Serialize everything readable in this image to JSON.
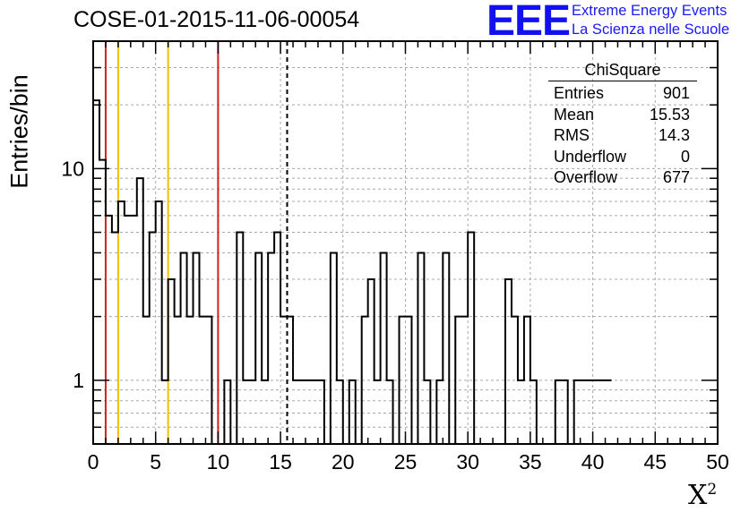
{
  "chart_data": {
    "type": "bar",
    "title": "COSE-01-2015-11-06-00054",
    "xlabel": "X²",
    "ylabel": "Entries/bin",
    "xlim": [
      0,
      50
    ],
    "ylim": [
      0.5,
      40
    ],
    "yscale": "log",
    "grid": true,
    "bin_width": 0.5,
    "x_ticks": [
      "0",
      "5",
      "10",
      "15",
      "20",
      "25",
      "30",
      "35",
      "40",
      "45",
      "50"
    ],
    "y_ticks": [
      "1",
      "10"
    ],
    "values": [
      21,
      11,
      6,
      5,
      7,
      6,
      6,
      9,
      2,
      5,
      7,
      1,
      3,
      2,
      4,
      2,
      4,
      2,
      2,
      0,
      0,
      1,
      0,
      5,
      1,
      1,
      4,
      1,
      4,
      5,
      2,
      2,
      1,
      1,
      1,
      1,
      1,
      0,
      4,
      1,
      0,
      1,
      0,
      2,
      3,
      1,
      4,
      1,
      0,
      2,
      2,
      0,
      4,
      1,
      0,
      1,
      4,
      0,
      2,
      2,
      5,
      0,
      0,
      0,
      0,
      0,
      3,
      2,
      1,
      2,
      1,
      0,
      0,
      0,
      1,
      1,
      0,
      1,
      1,
      1,
      1,
      1,
      1
    ],
    "reference_lines": [
      {
        "x": 1,
        "color": "#d32020"
      },
      {
        "x": 2,
        "color": "#f0c000"
      },
      {
        "x": 6,
        "color": "#f0c000"
      },
      {
        "x": 10,
        "color": "#d32020"
      },
      {
        "x": 15.53,
        "color": "#000000",
        "style": "dashed"
      }
    ]
  },
  "stats": {
    "title": "ChiSquare",
    "rows": [
      {
        "label": "Entries",
        "value": "901"
      },
      {
        "label": "Mean",
        "value": "15.53"
      },
      {
        "label": "RMS",
        "value": "14.3"
      },
      {
        "label": "Underflow",
        "value": "0"
      },
      {
        "label": "Overflow",
        "value": "677"
      }
    ]
  },
  "logo": {
    "mark": "EEE",
    "line1": "Extreme Energy Events",
    "line2": "La Scienza nelle Scuole"
  },
  "colors": {
    "logo_blue": "#1010f0",
    "red_line": "#d32020",
    "yellow_line": "#f0c000"
  }
}
